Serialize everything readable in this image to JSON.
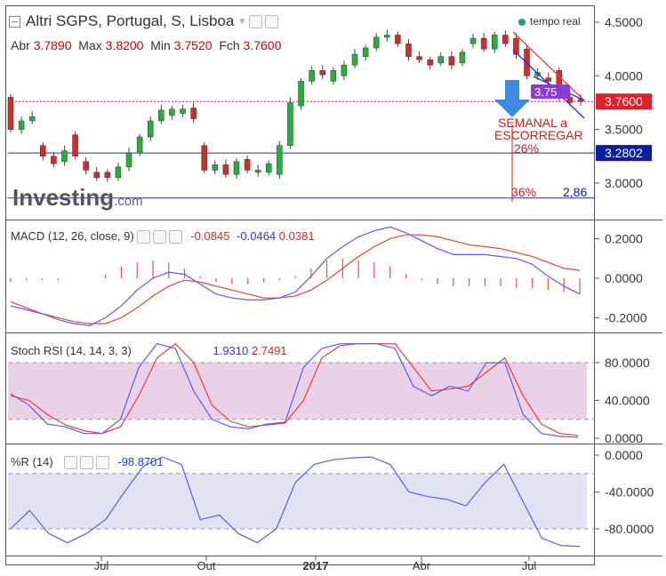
{
  "header": {
    "title": "Altri SGPS, Portugal, S, Lisboa",
    "ohlc_labels": {
      "open": "Abr",
      "high": "Max",
      "low": "Min",
      "close": "Fch"
    },
    "ohlc_values": {
      "open": "3.7890",
      "high": "3.8200",
      "low": "3.7520",
      "close": "3.7600"
    },
    "live_label": "tempo real"
  },
  "brand": {
    "name": "Investing",
    "suffix": ".com"
  },
  "colors": {
    "up": "#27ae3f",
    "down": "#d22b2b",
    "blue": "#5a5ee0",
    "red": "#e8413a",
    "band_pink": "#e8c9e4",
    "band_lav": "#e3e2f3",
    "price_tag": "#e0202a",
    "level_tag": "#0b1f9e"
  },
  "annotations": {
    "text1": "SEMANAL a",
    "text2": "ESCORREGAR",
    "text3": "26%",
    "text4": "36%",
    "text5": "2,86",
    "boxed": "3.75",
    "current_price": "3.7600",
    "level_price": "3.2802"
  },
  "x_axis": {
    "labels": [
      "Jul",
      "Out",
      "2017",
      "Abr",
      "Jul"
    ]
  },
  "macd": {
    "label": "MACD (12, 26, close, 9)",
    "values": [
      "-0.0845",
      "-0.0464",
      "0.0381"
    ],
    "ticks": [
      "0.2000",
      "0.0000",
      "-0.2000"
    ]
  },
  "stochrsi": {
    "label": "Stoch RSI (14, 14, 3, 3)",
    "values": [
      "1.9310",
      "2.7491"
    ],
    "ticks": [
      "80.0000",
      "40.0000",
      "0.0000"
    ]
  },
  "willr": {
    "label": "%R (14)",
    "values": [
      "-98.8701"
    ],
    "ticks": [
      "0.0000",
      "-40.0000",
      "-80.0000"
    ]
  },
  "chart_data": {
    "type": "candlestick",
    "price_axis": {
      "ticks": [
        "4.5000",
        "4.0000",
        "3.5000",
        "3.0000"
      ]
    },
    "candles": [
      [
        3.8,
        3.5
      ],
      [
        3.5,
        3.58
      ],
      [
        3.58,
        3.62
      ],
      [
        3.35,
        3.25
      ],
      [
        3.25,
        3.18
      ],
      [
        3.2,
        3.3
      ],
      [
        3.45,
        3.25
      ],
      [
        3.2,
        3.12
      ],
      [
        3.1,
        3.05
      ],
      [
        3.1,
        3.05
      ],
      [
        3.05,
        3.15
      ],
      [
        3.15,
        3.28
      ],
      [
        3.28,
        3.43
      ],
      [
        3.43,
        3.58
      ],
      [
        3.58,
        3.68
      ],
      [
        3.63,
        3.69
      ],
      [
        3.65,
        3.69
      ],
      [
        3.7,
        3.6
      ],
      [
        3.35,
        3.12
      ],
      [
        3.12,
        3.17
      ],
      [
        3.17,
        3.08
      ],
      [
        3.08,
        3.2
      ],
      [
        3.22,
        3.12
      ],
      [
        3.1,
        3.12
      ],
      [
        3.1,
        3.18
      ],
      [
        3.08,
        3.35
      ],
      [
        3.35,
        3.75
      ],
      [
        3.72,
        3.95
      ],
      [
        3.95,
        4.05
      ],
      [
        4.05,
        4.01
      ],
      [
        3.95,
        4.05
      ],
      [
        4.0,
        4.1
      ],
      [
        4.1,
        4.2
      ],
      [
        4.18,
        4.26
      ],
      [
        4.26,
        4.36
      ],
      [
        4.36,
        4.38
      ],
      [
        4.38,
        4.3
      ],
      [
        4.3,
        4.18
      ],
      [
        4.18,
        4.15
      ],
      [
        4.15,
        4.1
      ],
      [
        4.12,
        4.18
      ],
      [
        4.18,
        4.1
      ],
      [
        4.12,
        4.22
      ],
      [
        4.3,
        4.35
      ],
      [
        4.35,
        4.25
      ],
      [
        4.25,
        4.38
      ],
      [
        4.38,
        4.3
      ],
      [
        4.35,
        4.2
      ],
      [
        4.25,
        4.0
      ],
      [
        4.0,
        4.03
      ],
      [
        3.98,
        3.95
      ],
      [
        4.05,
        3.8
      ],
      [
        3.8,
        3.75
      ],
      [
        3.78,
        3.76
      ]
    ],
    "levels": [
      3.2802,
      2.86
    ],
    "current_price": 3.76,
    "macd": {
      "macd_line": [
        -0.14,
        -0.16,
        -0.18,
        -0.21,
        -0.23,
        -0.24,
        -0.2,
        -0.14,
        -0.06,
        0.0,
        0.03,
        0.02,
        -0.03,
        -0.08,
        -0.1,
        -0.11,
        -0.11,
        -0.1,
        -0.07,
        0.01,
        0.1,
        0.16,
        0.21,
        0.24,
        0.26,
        0.23,
        0.19,
        0.15,
        0.12,
        0.12,
        0.12,
        0.11,
        0.1,
        0.07,
        0.01,
        -0.04,
        -0.08
      ],
      "signal_line": [
        -0.12,
        -0.15,
        -0.18,
        -0.2,
        -0.22,
        -0.23,
        -0.23,
        -0.2,
        -0.15,
        -0.09,
        -0.04,
        -0.01,
        -0.02,
        -0.04,
        -0.06,
        -0.08,
        -0.1,
        -0.1,
        -0.09,
        -0.06,
        -0.01,
        0.05,
        0.11,
        0.16,
        0.2,
        0.22,
        0.22,
        0.21,
        0.19,
        0.17,
        0.16,
        0.15,
        0.13,
        0.11,
        0.08,
        0.05,
        0.04
      ],
      "histogram": [
        -0.02,
        -0.01,
        -0.01,
        -0.01,
        0.0,
        0.0,
        0.02,
        0.06,
        0.08,
        0.09,
        0.08,
        0.05,
        0.01,
        -0.02,
        -0.03,
        -0.03,
        -0.02,
        -0.01,
        0.01,
        0.05,
        0.09,
        0.1,
        0.09,
        0.08,
        0.06,
        0.02,
        -0.01,
        -0.03,
        -0.04,
        -0.04,
        -0.04,
        -0.04,
        -0.05,
        -0.05,
        -0.06,
        -0.07,
        -0.08
      ]
    },
    "stoch_rsi": {
      "k": [
        47,
        35,
        15,
        12,
        5,
        5,
        20,
        75,
        100,
        95,
        50,
        20,
        12,
        10,
        15,
        17,
        75,
        95,
        100,
        100,
        100,
        95,
        55,
        45,
        55,
        50,
        80,
        80,
        25,
        5,
        2,
        1
      ],
      "d": [
        45,
        40,
        25,
        14,
        8,
        5,
        12,
        45,
        85,
        100,
        80,
        35,
        18,
        12,
        14,
        16,
        40,
        85,
        98,
        100,
        100,
        100,
        75,
        50,
        52,
        55,
        70,
        85,
        45,
        15,
        5,
        3
      ]
    },
    "williams_r": [
      -80,
      -60,
      -85,
      -95,
      -85,
      -70,
      -40,
      -12,
      -2,
      -10,
      -70,
      -65,
      -85,
      -95,
      -80,
      -30,
      -10,
      -5,
      -3,
      -2,
      -10,
      -40,
      -45,
      -48,
      -55,
      -30,
      -10,
      -50,
      -90,
      -98,
      -99
    ]
  }
}
